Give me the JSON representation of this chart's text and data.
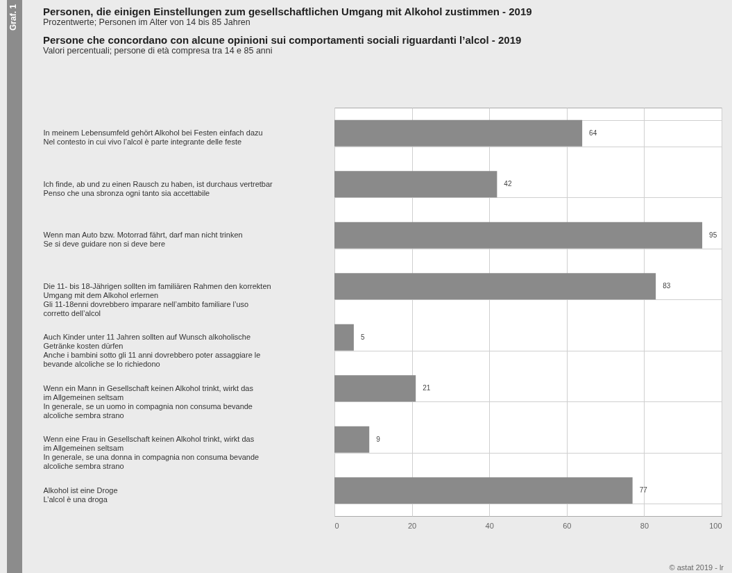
{
  "chart_data": {
    "type": "bar",
    "orientation": "horizontal",
    "title": "Personen, die einigen Einstellungen zum gesellschaftlichen Umgang mit Alkohol zustimmen - 2019",
    "subtitle": "Prozentwerte; Personen im Alter von 14 bis 85 Jahren",
    "annotations": [
      "Persone che concordano con alcune opinioni sui comportamenti sociali riguardanti l’alcol - 2019",
      "Valori percentuali; persone di età compresa tra 14 e 85 anni",
      "Graf. 1",
      "© astat 2019 - lr"
    ],
    "categories": [
      "In meinem Lebensumfeld gehört Alkohol bei Festen einfach dazu\nNel contesto in cui vivo l’alcol è parte integrante delle feste",
      "Ich finde, ab und zu einen Rausch zu haben, ist durchaus vertretbar\nPenso che una sbronza ogni tanto sia accettabile",
      "Wenn man Auto bzw. Motorrad fährt, darf man nicht trinken\nSe si deve guidare non si deve bere",
      "Die 11- bis 18-Jährigen sollten im familiären Rahmen den korrekten\nUmgang mit dem Alkohol erlernen\nGli 11-18enni dovrebbero imparare nell’ambito familiare l’uso\ncorretto dell’alcol",
      "Auch Kinder unter 11 Jahren sollten auf Wunsch alkoholische\nGetränke kosten dürfen\nAnche i bambini sotto gli 11 anni dovrebbero poter assaggiare le\nbevande alcoliche se lo richiedono",
      "Wenn ein Mann in Gesellschaft keinen Alkohol trinkt, wirkt das\nim Allgemeinen seltsam\nIn generale, se un uomo in compagnia non consuma bevande\nalcoliche sembra strano",
      "Wenn eine Frau in Gesellschaft keinen Alkohol trinkt, wirkt das\nim Allgemeinen seltsam\nIn generale, se una donna in compagnia non consuma bevande\nalcoliche sembra strano",
      "Alkohol ist eine Droge\nL’alcol è una droga"
    ],
    "values": [
      64,
      42,
      95,
      83,
      5,
      21,
      9,
      77
    ],
    "color": "#8a8a8a",
    "xlim": [
      0,
      100
    ],
    "xticks": [
      0,
      20,
      40,
      60,
      80,
      100
    ],
    "grid": true,
    "data_labels": true
  }
}
